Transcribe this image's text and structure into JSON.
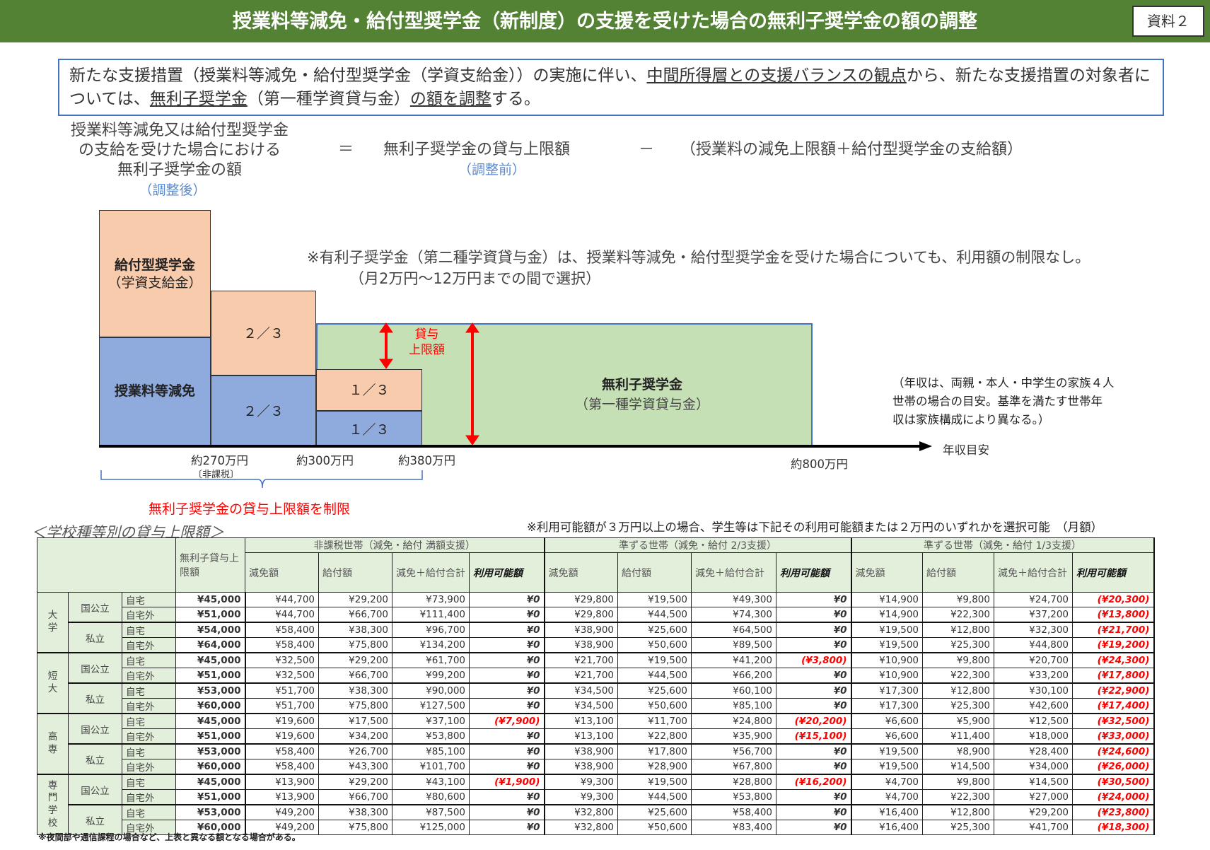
{
  "header": {
    "title": "授業料等減免・給付型奨学金（新制度）の支援を受けた場合の無利子奨学金の額の調整",
    "badge": "資料２"
  },
  "intro": {
    "p1": "新たな支援措置（授業料等減免・給付型奨学金（学資支給金））の実施に伴い、",
    "u1": "中間所得層との支援バランスの観点",
    "p2": "から、新たな支援措置の対象者については、",
    "u2": "無利子奨学金",
    "p3": "（第一種学資貸与金）",
    "u3": "の額を調整",
    "p4": "する。"
  },
  "formula": {
    "left1": "授業料等減免又は給付型奨学金",
    "left2": "の支給を受けた場合における",
    "left3": "無利子奨学金の額",
    "left_note": "（調整後）",
    "eq": "＝",
    "middle": "無利子奨学金の貸与上限額",
    "middle_note": "（調整前）",
    "minus": "－",
    "right": "（授業料の減免上限額＋給付型奨学金の支給額）"
  },
  "diagram": {
    "kyufu1": "給付型奨学金",
    "kyufu2": "（学資支給金）",
    "genmen": "授業料等減免",
    "two_thirds_top": "２／３",
    "two_thirds_bottom": "２／３",
    "one_third_top": "１／３",
    "one_third_bottom": "１／３",
    "loan_limit1": "貸与",
    "loan_limit2": "上限額",
    "muri1": "無利子奨学金",
    "muri2": "（第一種学資貸与金）",
    "note1": "※有利子奨学金（第二種学資貸与金）は、授業料等減免・給付型奨学金を受けた場合についても、利用額の制限なし。",
    "note2": "（月2万円～12万円までの間で選択）",
    "income_note1": "（年収は、両親・本人・中学生の家族４人",
    "income_note2": "世帯の場合の目安。基準を満たす世帯年",
    "income_note3": "収は家族構成により異なる。）",
    "x270": "約270万円",
    "hikazei": "〔非課税〕",
    "x300": "約300万円",
    "x380": "約380万円",
    "x800": "約800万円",
    "axis": "年収目安",
    "brace_label": "無利子奨学金の貸与上限額を制限"
  },
  "table_title": "＜学校種等別の貸与上限額＞",
  "table_note": "※利用可能額が３万円以上の場合、学生等は下記その利用可能額または２万円のいずれかを選択可能　（月額）",
  "footnote": "※夜間部や通信課程の場合など、上表と異なる額となる場合がある。",
  "table": {
    "limit_header": "無利子貸与上限額",
    "groups": [
      "非課税世帯（減免・給付 満額支援）",
      "準ずる世帯（減免・給付 2/3支援）",
      "準ずる世帯（減免・給付 1/3支援）"
    ],
    "sub": [
      "減免額",
      "給付額",
      "減免＋給付合計",
      "利用可能額"
    ],
    "schools": [
      "大学",
      "短大",
      "高専",
      "専門学校"
    ],
    "types": [
      "国公立",
      "私立"
    ],
    "living": [
      "自宅",
      "自宅外"
    ],
    "rows": [
      [
        "¥45,000",
        "¥44,700",
        "¥29,200",
        "¥73,900",
        "¥0",
        "¥29,800",
        "¥19,500",
        "¥49,300",
        "¥0",
        "¥14,900",
        "¥9,800",
        "¥24,700",
        "(¥20,300)"
      ],
      [
        "¥51,000",
        "¥44,700",
        "¥66,700",
        "¥111,400",
        "¥0",
        "¥29,800",
        "¥44,500",
        "¥74,300",
        "¥0",
        "¥14,900",
        "¥22,300",
        "¥37,200",
        "(¥13,800)"
      ],
      [
        "¥54,000",
        "¥58,400",
        "¥38,300",
        "¥96,700",
        "¥0",
        "¥38,900",
        "¥25,600",
        "¥64,500",
        "¥0",
        "¥19,500",
        "¥12,800",
        "¥32,300",
        "(¥21,700)"
      ],
      [
        "¥64,000",
        "¥58,400",
        "¥75,800",
        "¥134,200",
        "¥0",
        "¥38,900",
        "¥50,600",
        "¥89,500",
        "¥0",
        "¥19,500",
        "¥25,300",
        "¥44,800",
        "(¥19,200)"
      ],
      [
        "¥45,000",
        "¥32,500",
        "¥29,200",
        "¥61,700",
        "¥0",
        "¥21,700",
        "¥19,500",
        "¥41,200",
        "(¥3,800)",
        "¥10,900",
        "¥9,800",
        "¥20,700",
        "(¥24,300)"
      ],
      [
        "¥51,000",
        "¥32,500",
        "¥66,700",
        "¥99,200",
        "¥0",
        "¥21,700",
        "¥44,500",
        "¥66,200",
        "¥0",
        "¥10,900",
        "¥22,300",
        "¥33,200",
        "(¥17,800)"
      ],
      [
        "¥53,000",
        "¥51,700",
        "¥38,300",
        "¥90,000",
        "¥0",
        "¥34,500",
        "¥25,600",
        "¥60,100",
        "¥0",
        "¥17,300",
        "¥12,800",
        "¥30,100",
        "(¥22,900)"
      ],
      [
        "¥60,000",
        "¥51,700",
        "¥75,800",
        "¥127,500",
        "¥0",
        "¥34,500",
        "¥50,600",
        "¥85,100",
        "¥0",
        "¥17,300",
        "¥25,300",
        "¥42,600",
        "(¥17,400)"
      ],
      [
        "¥45,000",
        "¥19,600",
        "¥17,500",
        "¥37,100",
        "(¥7,900)",
        "¥13,100",
        "¥11,700",
        "¥24,800",
        "(¥20,200)",
        "¥6,600",
        "¥5,900",
        "¥12,500",
        "(¥32,500)"
      ],
      [
        "¥51,000",
        "¥19,600",
        "¥34,200",
        "¥53,800",
        "¥0",
        "¥13,100",
        "¥22,800",
        "¥35,900",
        "(¥15,100)",
        "¥6,600",
        "¥11,400",
        "¥18,000",
        "(¥33,000)"
      ],
      [
        "¥53,000",
        "¥58,400",
        "¥26,700",
        "¥85,100",
        "¥0",
        "¥38,900",
        "¥17,800",
        "¥56,700",
        "¥0",
        "¥19,500",
        "¥8,900",
        "¥28,400",
        "(¥24,600)"
      ],
      [
        "¥60,000",
        "¥58,400",
        "¥43,300",
        "¥101,700",
        "¥0",
        "¥38,900",
        "¥28,900",
        "¥67,800",
        "¥0",
        "¥19,500",
        "¥14,500",
        "¥34,000",
        "(¥26,000)"
      ],
      [
        "¥45,000",
        "¥13,900",
        "¥29,200",
        "¥43,100",
        "(¥1,900)",
        "¥9,300",
        "¥19,500",
        "¥28,800",
        "(¥16,200)",
        "¥4,700",
        "¥9,800",
        "¥14,500",
        "(¥30,500)"
      ],
      [
        "¥51,000",
        "¥13,900",
        "¥66,700",
        "¥80,600",
        "¥0",
        "¥9,300",
        "¥44,500",
        "¥53,800",
        "¥0",
        "¥4,700",
        "¥22,300",
        "¥27,000",
        "(¥24,000)"
      ],
      [
        "¥53,000",
        "¥49,200",
        "¥38,300",
        "¥87,500",
        "¥0",
        "¥32,800",
        "¥25,600",
        "¥58,400",
        "¥0",
        "¥16,400",
        "¥12,800",
        "¥29,200",
        "(¥23,800)"
      ],
      [
        "¥60,000",
        "¥49,200",
        "¥75,800",
        "¥125,000",
        "¥0",
        "¥32,800",
        "¥50,600",
        "¥83,400",
        "¥0",
        "¥16,400",
        "¥25,300",
        "¥41,700",
        "(¥18,300)"
      ]
    ]
  },
  "colors": {
    "header_green": "#548235",
    "orange": "#f8cbad",
    "blue": "#8faadc",
    "green": "#c5e0b4",
    "red": "#ff0000"
  }
}
